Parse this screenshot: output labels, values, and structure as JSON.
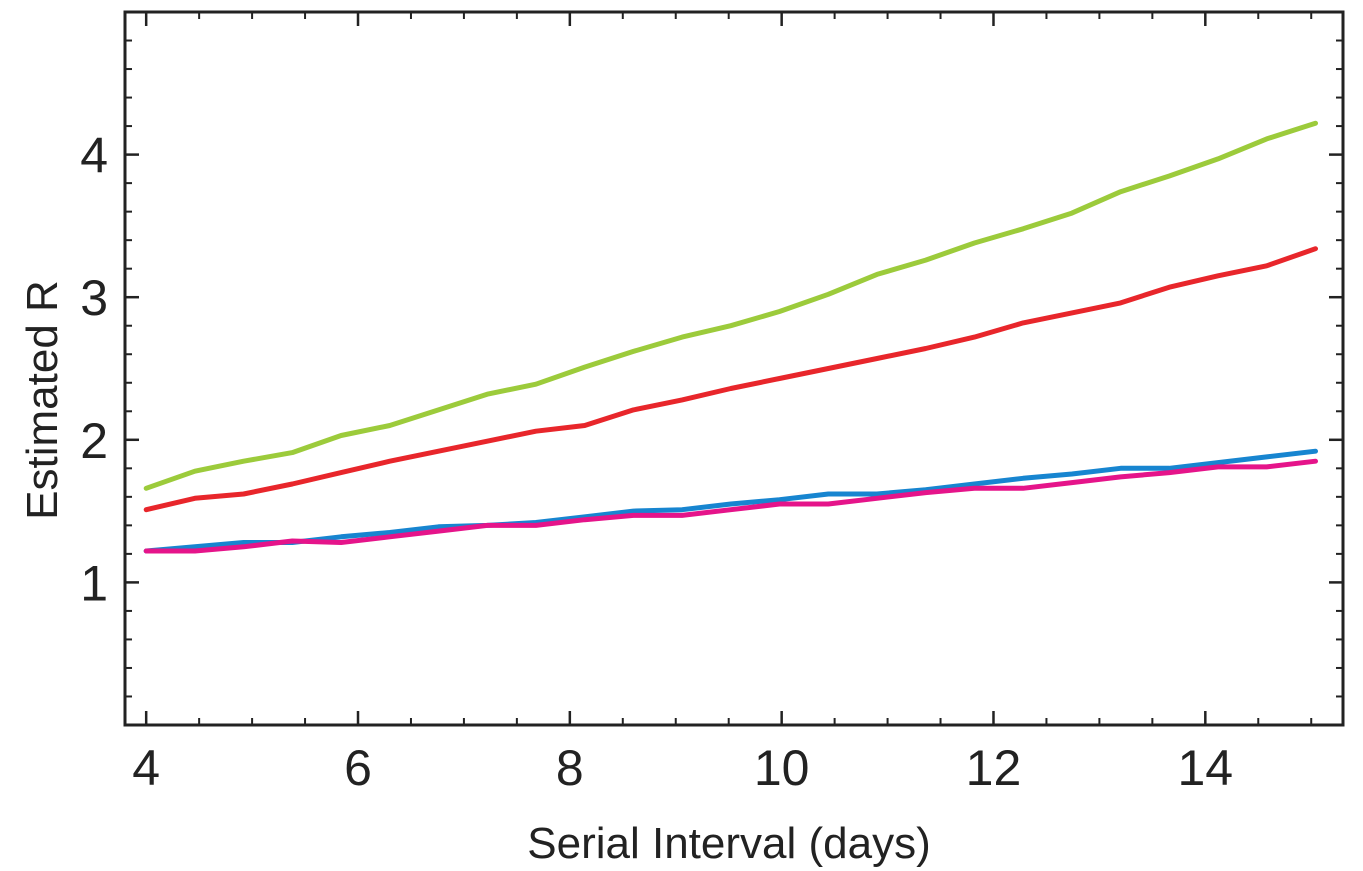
{
  "chart_data": {
    "type": "line",
    "title": "",
    "xlabel": "Serial Interval (days)",
    "ylabel": "Estimated R",
    "xlim": [
      3.8,
      15.3
    ],
    "ylim": [
      0,
      5
    ],
    "xticks": [
      4,
      6,
      8,
      10,
      12,
      14
    ],
    "xtick_labels": [
      "4",
      "6",
      "8",
      "10",
      "12",
      "14"
    ],
    "yticks": [
      1,
      2,
      3,
      4
    ],
    "ytick_labels": [
      "1",
      "2",
      "3",
      "4"
    ],
    "grid": false,
    "x": [
      4,
      4.46,
      4.92,
      5.38,
      5.84,
      6.3,
      6.76,
      7.22,
      7.68,
      8.14,
      8.6,
      9.06,
      9.52,
      9.98,
      10.44,
      10.9,
      11.36,
      11.82,
      12.28,
      12.74,
      13.2,
      13.66,
      14.12,
      14.58,
      15.04
    ],
    "series": [
      {
        "color": "#9ccb3b",
        "values": [
          1.66,
          1.78,
          1.85,
          1.91,
          2.03,
          2.1,
          2.21,
          2.32,
          2.39,
          2.51,
          2.62,
          2.72,
          2.8,
          2.9,
          3.02,
          3.16,
          3.26,
          3.38,
          3.48,
          3.59,
          3.74,
          3.85,
          3.97,
          4.11,
          4.22
        ]
      },
      {
        "color": "#e8262b",
        "values": [
          1.51,
          1.59,
          1.62,
          1.69,
          1.77,
          1.85,
          1.92,
          1.99,
          2.06,
          2.1,
          2.21,
          2.28,
          2.36,
          2.43,
          2.5,
          2.57,
          2.64,
          2.72,
          2.82,
          2.89,
          2.96,
          3.07,
          3.15,
          3.22,
          3.34
        ]
      },
      {
        "color": "#1785d0",
        "values": [
          1.22,
          1.25,
          1.28,
          1.28,
          1.32,
          1.35,
          1.39,
          1.4,
          1.42,
          1.46,
          1.5,
          1.51,
          1.55,
          1.58,
          1.62,
          1.62,
          1.65,
          1.69,
          1.73,
          1.76,
          1.8,
          1.8,
          1.84,
          1.88,
          1.92
        ]
      },
      {
        "color": "#e5148a",
        "values": [
          1.22,
          1.22,
          1.25,
          1.29,
          1.28,
          1.32,
          1.36,
          1.4,
          1.4,
          1.44,
          1.47,
          1.47,
          1.51,
          1.55,
          1.55,
          1.59,
          1.63,
          1.66,
          1.66,
          1.7,
          1.74,
          1.77,
          1.81,
          1.81,
          1.85
        ]
      }
    ]
  }
}
